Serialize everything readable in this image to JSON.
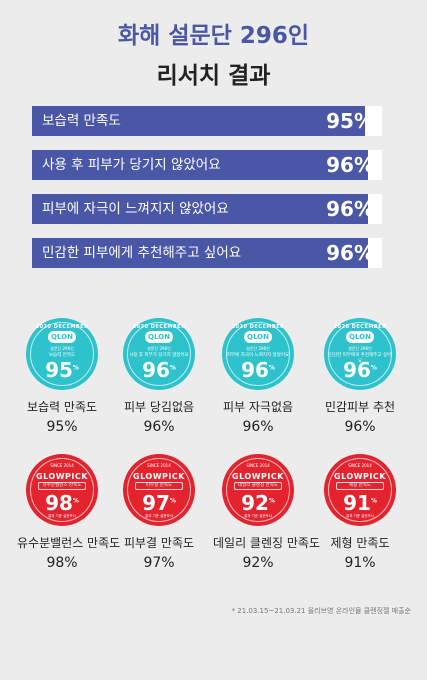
{
  "header": {
    "line1": "화해 설문단 296인",
    "line2": "리서치 결과"
  },
  "bars": [
    {
      "label": "보습력 만족도",
      "value": "95%",
      "fraction": 0.95
    },
    {
      "label": "사용 후 피부가 당기지 않았어요",
      "value": "96%",
      "fraction": 0.96
    },
    {
      "label": "피부에 자극이 느껴지지 않았어요",
      "value": "96%",
      "fraction": 0.96
    },
    {
      "label": "민감한 피부에게 추천해주고 싶어요",
      "value": "96%",
      "fraction": 0.96
    }
  ],
  "badges_row1": [
    {
      "arc": "2020 DECEMBER",
      "logo": "QLON",
      "sub": "설문단 296인",
      "small": "보습력 만족도",
      "num": "95",
      "pct": "%",
      "caption": "보습력 만족도",
      "value": "95%"
    },
    {
      "arc": "2020 DECEMBER",
      "logo": "QLON",
      "sub": "설문단 296인",
      "small": "사용 후 피부가 당기지 않았어요",
      "num": "96",
      "pct": "%",
      "caption": "피부 당김없음",
      "value": "96%"
    },
    {
      "arc": "2020 DECEMBER",
      "logo": "QLON",
      "sub": "설문단 296인",
      "small": "피부에 자극이 느껴지지 않았어요",
      "num": "96",
      "pct": "%",
      "caption": "피부 자극없음",
      "value": "96%"
    },
    {
      "arc": "2020 DECEMBER",
      "logo": "QLON",
      "sub": "설문단 296인",
      "small": "민감한 피부에게 추천해주고 싶어요",
      "num": "96",
      "pct": "%",
      "caption": "민감피부 추천",
      "value": "96%"
    }
  ],
  "badges_row2": [
    {
      "top": "SINCE 2014",
      "brand": "GLOWPICK",
      "box": "유수분밸런스 만족도",
      "num": "98",
      "pct": "%",
      "bottom": "결과 기준 설문조사",
      "caption": "유수분밸런스 만족도",
      "value": "98%"
    },
    {
      "top": "SINCE 2014",
      "brand": "GLOWPICK",
      "box": "피부결 만족도",
      "num": "97",
      "pct": "%",
      "bottom": "결과 기준 설문조사",
      "caption": "피부결 만족도",
      "value": "97%"
    },
    {
      "top": "SINCE 2014",
      "brand": "GLOWPICK",
      "box": "데일리 클렌징 만족도",
      "num": "92",
      "pct": "%",
      "bottom": "결과 기준 설문조사",
      "caption": "데일리 클렌징 만족도",
      "value": "92%"
    },
    {
      "top": "SINCE 2014",
      "brand": "GLOWPICK",
      "box": "제형 만족도",
      "num": "91",
      "pct": "%",
      "bottom": "결과 기준 설문조사",
      "caption": "제형 만족도",
      "value": "91%"
    }
  ],
  "footnote": "* 21.03.15~21.03.21 올리브영 온라인몰 클렌징젤 매출순"
}
